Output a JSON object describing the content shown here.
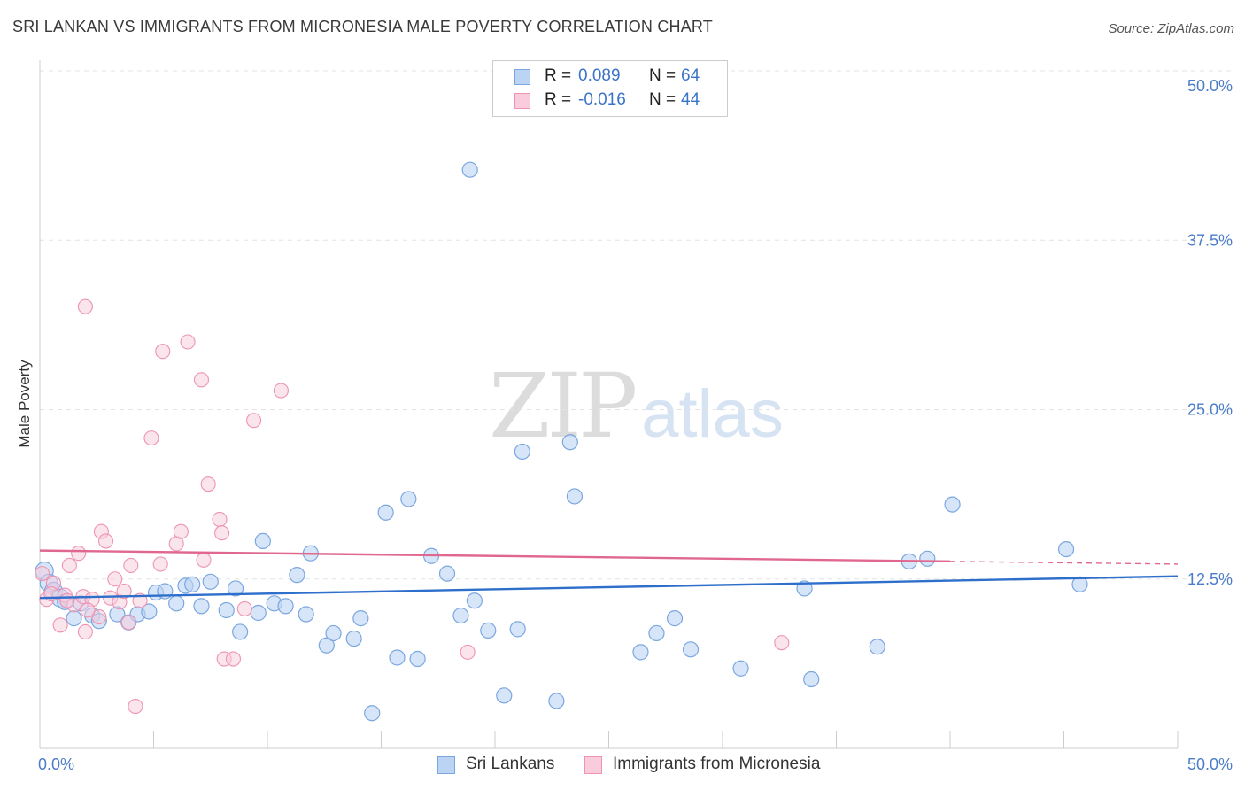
{
  "header": {
    "title": "SRI LANKAN VS IMMIGRANTS FROM MICRONESIA MALE POVERTY CORRELATION CHART",
    "source": "Source: ZipAtlas.com"
  },
  "watermark": {
    "zip": "ZIP",
    "atlas": "atlas"
  },
  "colors": {
    "blue": "#7ba7e0",
    "blue_fill": "#bcd4f4",
    "blue_line": "#2e6fcb",
    "pink": "#ee93b2",
    "pink_fill": "#f8ccdc",
    "pink_line": "#e0688f",
    "tick_text": "#4a7cc7"
  },
  "stats": {
    "rows": [
      {
        "r_label": "R =",
        "r_value": "0.089",
        "n_label": "N =",
        "n_value": "64"
      },
      {
        "r_label": "R =",
        "r_value": "-0.016",
        "n_label": "N =",
        "n_value": "44"
      }
    ]
  },
  "legend": {
    "items": [
      {
        "label": "Sri Lankans"
      },
      {
        "label": "Immigrants from Micronesia"
      }
    ]
  },
  "chart_data": {
    "type": "scatter",
    "title": "SRI LANKAN VS IMMIGRANTS FROM MICRONESIA MALE POVERTY CORRELATION CHART",
    "xlabel": "",
    "ylabel": "Male Poverty",
    "xlim": [
      0,
      50
    ],
    "ylim": [
      0,
      50
    ],
    "x_tick_labels": [
      "0.0%",
      "50.0%"
    ],
    "y_ticks": [
      12.5,
      25.0,
      37.5,
      50.0
    ],
    "y_tick_labels": [
      "12.5%",
      "25.0%",
      "37.5%",
      "50.0%"
    ],
    "grid": true,
    "series": [
      {
        "name": "Sri Lankans",
        "color": "#7ba7e0",
        "trend": {
          "x": [
            0,
            50
          ],
          "y": [
            11.1,
            12.7
          ]
        },
        "points": [
          [
            0.2,
            13.1
          ],
          [
            0.4,
            12.2
          ],
          [
            0.6,
            11.6
          ],
          [
            0.9,
            11.1
          ],
          [
            1.1,
            10.8
          ],
          [
            1.5,
            9.6
          ],
          [
            1.8,
            10.7
          ],
          [
            2.3,
            9.8
          ],
          [
            2.6,
            9.4
          ],
          [
            3.4,
            9.9
          ],
          [
            3.9,
            9.3
          ],
          [
            4.3,
            9.9
          ],
          [
            4.8,
            10.1
          ],
          [
            5.1,
            11.5
          ],
          [
            5.5,
            11.6
          ],
          [
            6.0,
            10.7
          ],
          [
            6.4,
            12.0
          ],
          [
            6.7,
            12.1
          ],
          [
            7.1,
            10.5
          ],
          [
            7.5,
            12.3
          ],
          [
            8.2,
            10.2
          ],
          [
            8.6,
            11.8
          ],
          [
            8.8,
            8.6
          ],
          [
            9.6,
            10.0
          ],
          [
            9.8,
            15.3
          ],
          [
            10.3,
            10.7
          ],
          [
            10.8,
            10.5
          ],
          [
            11.3,
            12.8
          ],
          [
            11.7,
            9.9
          ],
          [
            11.9,
            14.4
          ],
          [
            12.6,
            7.6
          ],
          [
            12.9,
            8.5
          ],
          [
            13.8,
            8.1
          ],
          [
            14.1,
            9.6
          ],
          [
            14.6,
            2.6
          ],
          [
            15.2,
            17.4
          ],
          [
            15.7,
            6.7
          ],
          [
            16.2,
            18.4
          ],
          [
            16.6,
            6.6
          ],
          [
            17.2,
            14.2
          ],
          [
            17.9,
            12.9
          ],
          [
            18.5,
            9.8
          ],
          [
            18.9,
            42.7
          ],
          [
            19.1,
            10.9
          ],
          [
            19.7,
            8.7
          ],
          [
            20.4,
            3.9
          ],
          [
            21.0,
            8.8
          ],
          [
            21.2,
            21.9
          ],
          [
            22.7,
            3.5
          ],
          [
            23.3,
            22.6
          ],
          [
            23.5,
            18.6
          ],
          [
            26.4,
            7.1
          ],
          [
            27.1,
            8.5
          ],
          [
            27.9,
            9.6
          ],
          [
            28.6,
            7.3
          ],
          [
            30.8,
            5.9
          ],
          [
            33.6,
            11.8
          ],
          [
            33.9,
            5.1
          ],
          [
            36.8,
            7.5
          ],
          [
            38.2,
            13.8
          ],
          [
            39.0,
            14.0
          ],
          [
            40.1,
            18.0
          ],
          [
            45.1,
            14.7
          ],
          [
            45.7,
            12.1
          ]
        ]
      },
      {
        "name": "Immigrants from Micronesia",
        "color": "#ee93b2",
        "trend": {
          "x": [
            0,
            40
          ],
          "y": [
            14.6,
            13.8
          ],
          "dashed_to": [
            50,
            13.6
          ]
        },
        "points": [
          [
            0.1,
            12.9
          ],
          [
            0.3,
            11.0
          ],
          [
            0.6,
            12.2
          ],
          [
            0.9,
            9.1
          ],
          [
            1.1,
            11.3
          ],
          [
            1.3,
            13.5
          ],
          [
            1.5,
            10.6
          ],
          [
            1.7,
            14.4
          ],
          [
            1.9,
            11.2
          ],
          [
            2.0,
            8.6
          ],
          [
            2.3,
            11.0
          ],
          [
            2.6,
            9.7
          ],
          [
            2.7,
            16.0
          ],
          [
            2.9,
            15.3
          ],
          [
            3.1,
            11.1
          ],
          [
            3.3,
            12.5
          ],
          [
            3.5,
            10.8
          ],
          [
            3.7,
            11.6
          ],
          [
            3.9,
            9.3
          ],
          [
            4.0,
            13.5
          ],
          [
            4.2,
            3.1
          ],
          [
            4.4,
            10.9
          ],
          [
            4.9,
            22.9
          ],
          [
            5.3,
            13.6
          ],
          [
            5.4,
            29.3
          ],
          [
            6.0,
            15.1
          ],
          [
            6.2,
            16.0
          ],
          [
            6.5,
            30.0
          ],
          [
            7.1,
            27.2
          ],
          [
            7.2,
            13.9
          ],
          [
            7.4,
            19.5
          ],
          [
            7.9,
            16.9
          ],
          [
            8.0,
            15.9
          ],
          [
            8.1,
            6.6
          ],
          [
            8.5,
            6.6
          ],
          [
            9.0,
            10.3
          ],
          [
            9.4,
            24.2
          ],
          [
            10.6,
            26.4
          ],
          [
            18.8,
            7.1
          ],
          [
            32.6,
            7.8
          ],
          [
            2.0,
            32.6
          ],
          [
            0.5,
            11.4
          ],
          [
            1.2,
            10.9
          ],
          [
            2.1,
            10.2
          ]
        ]
      }
    ]
  }
}
